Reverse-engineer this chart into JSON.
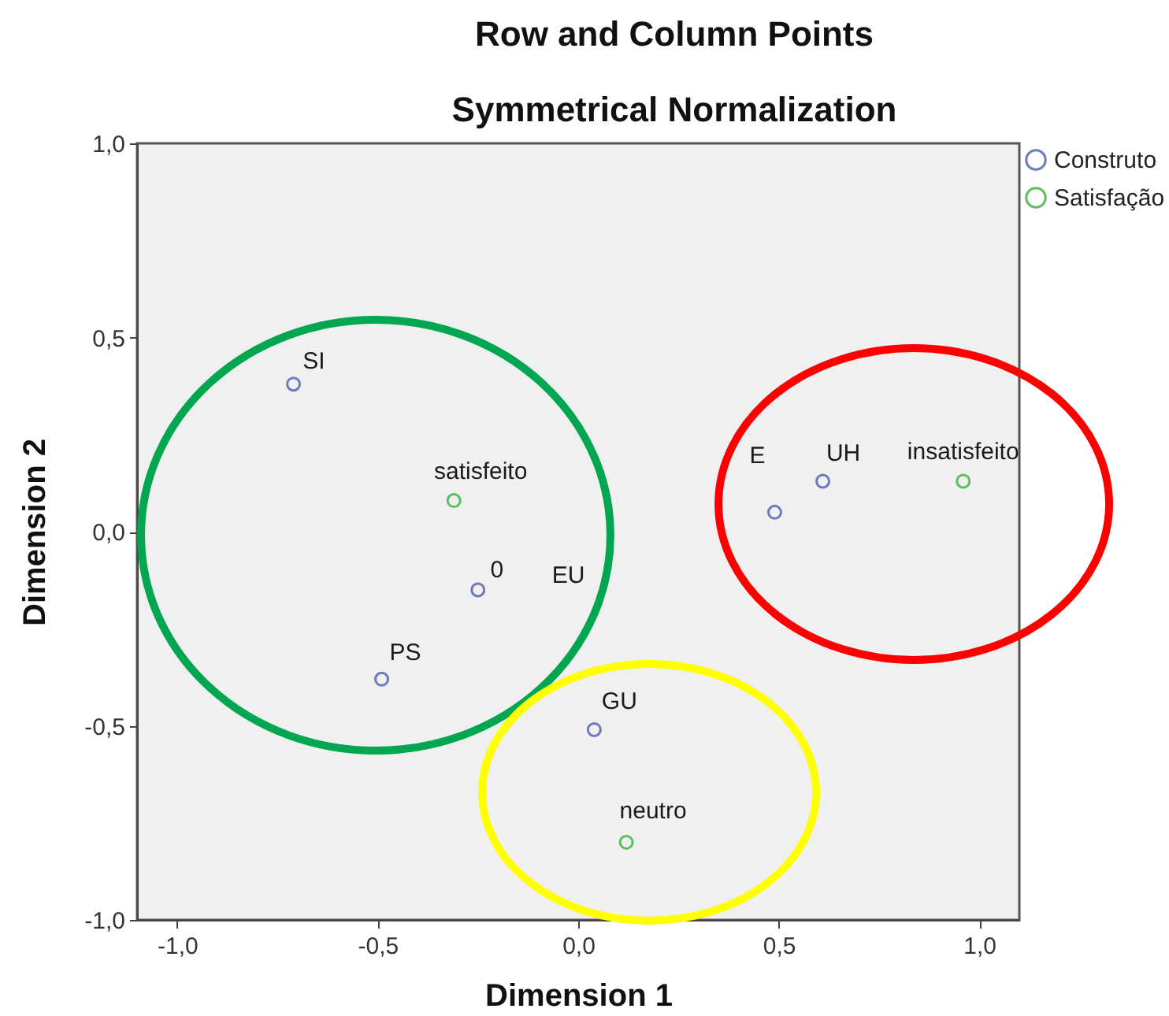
{
  "chart_data": {
    "type": "scatter",
    "title": "Row and Column Points",
    "subtitle": "Symmetrical Normalization",
    "xlabel": "Dimension 1",
    "ylabel": "Dimension 2",
    "series": [
      {
        "name": "Construto",
        "color": "#6a7bc0",
        "x": [
          -0.71,
          -0.25,
          -0.49,
          0.04,
          0.49,
          0.61
        ],
        "values": [
          0.38,
          -0.15,
          -0.38,
          -0.51,
          0.05,
          0.13
        ]
      },
      {
        "name": "Satisfação",
        "color": "#5cbf5c",
        "x": [
          -0.31,
          0.12,
          0.96
        ],
        "values": [
          0.08,
          -0.8,
          0.13
        ]
      }
    ],
    "annotations": [
      {
        "text": "SI",
        "x": -0.71,
        "y": 0.38
      },
      {
        "text": "satisfeito",
        "x": -0.31,
        "y": 0.08
      },
      {
        "text": "0",
        "x": -0.25,
        "y": -0.15
      },
      {
        "text": "PS",
        "x": -0.49,
        "y": -0.38
      },
      {
        "text": "GU",
        "x": 0.04,
        "y": -0.51
      },
      {
        "text": "neutro",
        "x": 0.12,
        "y": -0.8
      },
      {
        "text": "E",
        "x": 0.49,
        "y": 0.05
      },
      {
        "text": "UH",
        "x": 0.61,
        "y": 0.13
      },
      {
        "text": "insatisfeito",
        "x": 0.96,
        "y": 0.13
      },
      "EU"
    ],
    "xlim": [
      -1.1,
      1.1
    ],
    "ylim": [
      -1,
      1
    ],
    "xticks": [
      {
        "value": -1,
        "label": "-1,0"
      },
      {
        "value": -0.5,
        "label": "-0,5"
      },
      {
        "value": 0,
        "label": "0,0"
      },
      {
        "value": 0.5,
        "label": "0,5"
      },
      {
        "value": 1,
        "label": "1,0"
      }
    ],
    "yticks": [
      {
        "value": -1,
        "label": "-1,0"
      },
      {
        "value": -0.5,
        "label": "-0,5"
      },
      {
        "value": 0,
        "label": "0,0"
      },
      {
        "value": 0.5,
        "label": "0,5"
      },
      {
        "value": 1,
        "label": "1,0"
      }
    ],
    "legend": "top right",
    "marker": "circle"
  }
}
